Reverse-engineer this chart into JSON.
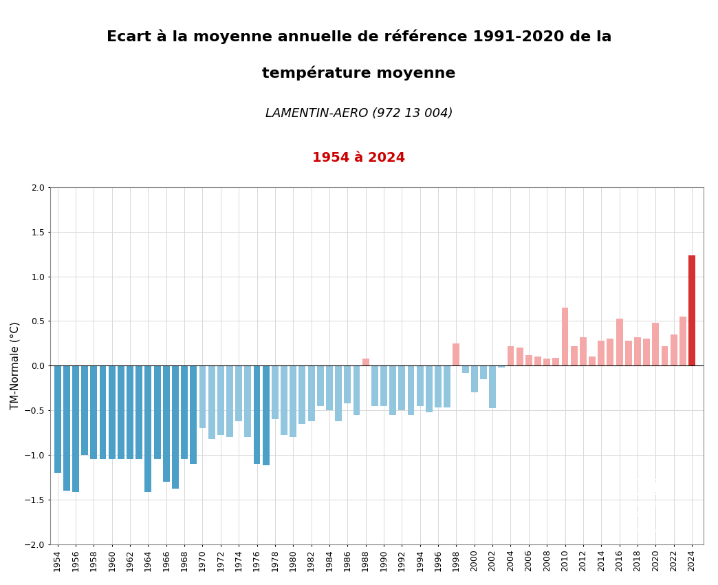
{
  "title_line1": "Ecart à la moyenne annuelle de référence 1991-2020 de la",
  "title_line2": "température moyenne",
  "subtitle": "LAMENTIN-AERO (972 13 004)",
  "period_label": "1954 à 2024",
  "ylabel": "TM-Normale (°C)",
  "ylim": [
    -2.0,
    2.0
  ],
  "yticks": [
    -2.0,
    -1.5,
    -1.0,
    -0.5,
    0.0,
    0.5,
    1.0,
    1.5,
    2.0
  ],
  "color_positive": "#F4A8A8",
  "color_negative": "#92C5DE",
  "color_strong_positive": "#D63030",
  "color_strong_negative": "#4CA0C8",
  "bg_header": "#EBEBEB",
  "bg_chart": "#FFFFFF",
  "years": [
    1954,
    1955,
    1956,
    1957,
    1958,
    1959,
    1960,
    1961,
    1962,
    1963,
    1964,
    1965,
    1966,
    1967,
    1968,
    1969,
    1970,
    1971,
    1972,
    1973,
    1974,
    1975,
    1976,
    1977,
    1978,
    1979,
    1980,
    1981,
    1982,
    1983,
    1984,
    1985,
    1986,
    1987,
    1988,
    1989,
    1990,
    1991,
    1992,
    1993,
    1994,
    1995,
    1996,
    1997,
    1998,
    1999,
    2000,
    2001,
    2002,
    2003,
    2004,
    2005,
    2006,
    2007,
    2008,
    2009,
    2010,
    2011,
    2012,
    2013,
    2014,
    2015,
    2016,
    2017,
    2018,
    2019,
    2020,
    2021,
    2022,
    2023,
    2024
  ],
  "values": [
    -1.2,
    -1.4,
    -1.42,
    -1.0,
    -1.05,
    -1.05,
    -1.05,
    -1.05,
    -1.05,
    -1.05,
    -1.42,
    -1.05,
    -1.3,
    -1.38,
    -1.05,
    -1.1,
    -0.7,
    -0.82,
    -0.78,
    -0.8,
    -0.62,
    -0.8,
    -1.1,
    -1.12,
    -0.6,
    -0.78,
    -0.8,
    -0.65,
    -0.62,
    -0.45,
    -0.5,
    -0.62,
    -0.42,
    -0.55,
    0.08,
    -0.45,
    -0.45,
    -0.55,
    -0.5,
    -0.55,
    -0.45,
    -0.52,
    -0.47,
    -0.47,
    0.25,
    -0.08,
    -0.3,
    -0.15,
    -0.48,
    -0.02,
    0.22,
    0.2,
    0.12,
    0.1,
    0.08,
    0.09,
    0.65,
    0.22,
    0.32,
    0.1,
    0.28,
    0.3,
    0.53,
    0.28,
    0.32,
    0.3,
    0.48,
    0.22,
    0.35,
    0.55,
    1.24
  ],
  "logo_color": "#1A3A6B",
  "period_text_color": "#CC0000",
  "grid_color": "#D8D8D8",
  "title_fontsize": 16,
  "subtitle_fontsize": 13,
  "period_fontsize": 14,
  "ylabel_fontsize": 11,
  "tick_fontsize": 9
}
